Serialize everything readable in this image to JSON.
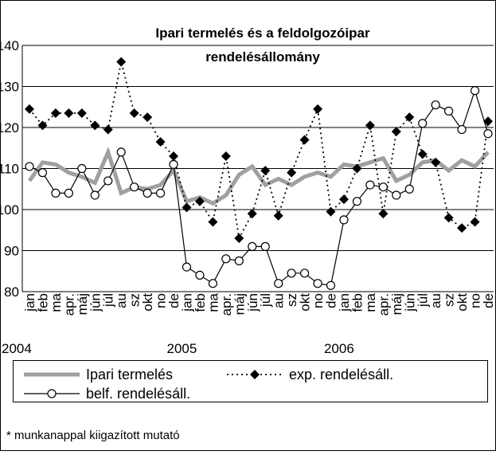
{
  "chart_data": {
    "type": "line",
    "title": [
      "Ipari termelés és a feldolgozóipar",
      "rendelésállomány"
    ],
    "categories": [
      "jan",
      "feb",
      "ma",
      "apr.",
      "máj",
      "jún",
      "júl",
      "au",
      "sz",
      "okt",
      "no",
      "de",
      "jan",
      "feb",
      "ma",
      "apr.",
      "máj",
      "jún",
      "júl",
      "au",
      "sz",
      "okt",
      "no",
      "de",
      "jan",
      "feb",
      "ma",
      "apr.",
      "máj",
      "jún",
      "júl",
      "au",
      "sz",
      "okt",
      "no",
      "de"
    ],
    "year_labels": [
      "2004",
      "2005",
      "2006"
    ],
    "ylim": [
      80,
      140
    ],
    "yticks": [
      80,
      90,
      100,
      110,
      120,
      130,
      140
    ],
    "grid": true,
    "series": [
      {
        "name": "Ipari termelés",
        "color": "#a0a0a0",
        "style": "thick",
        "values": [
          107,
          111.5,
          111,
          109,
          108,
          106.5,
          114,
          104,
          105.5,
          105,
          106,
          109.5,
          102,
          103,
          101.5,
          103.5,
          108.5,
          110.5,
          106,
          107.5,
          106,
          108,
          109,
          108,
          111,
          110.5,
          111.5,
          112.5,
          107,
          108.5,
          111.5,
          112,
          109.5,
          112,
          110.5,
          114
        ]
      },
      {
        "name": "exp. rendelésáll.",
        "color": "#000000",
        "style": "dotted-diamond",
        "values": [
          124.5,
          120.5,
          123.5,
          123.5,
          123.5,
          120.5,
          119.5,
          136,
          123.5,
          122.5,
          116.5,
          113,
          100.5,
          102,
          97,
          113,
          93,
          99,
          109.5,
          98.5,
          109,
          117,
          124.5,
          99.5,
          102.5,
          110,
          120.5,
          99,
          119,
          122.5,
          113.5,
          111.5,
          98,
          95.5,
          97,
          121.5
        ]
      },
      {
        "name": "belf. rendelésáll.",
        "color": "#000000",
        "style": "solid-circle",
        "values": [
          110.5,
          109,
          104,
          104,
          110,
          103.5,
          107,
          114,
          105.5,
          104,
          104,
          111,
          86,
          84,
          82,
          88,
          87.5,
          91,
          91,
          82,
          84.5,
          84.5,
          82,
          81.5,
          97.5,
          102,
          106,
          105.5,
          103.5,
          105,
          121,
          125.5,
          124,
          119.5,
          129,
          118.5
        ]
      }
    ],
    "footnote": "* munkanappal kiigazított mutató"
  }
}
